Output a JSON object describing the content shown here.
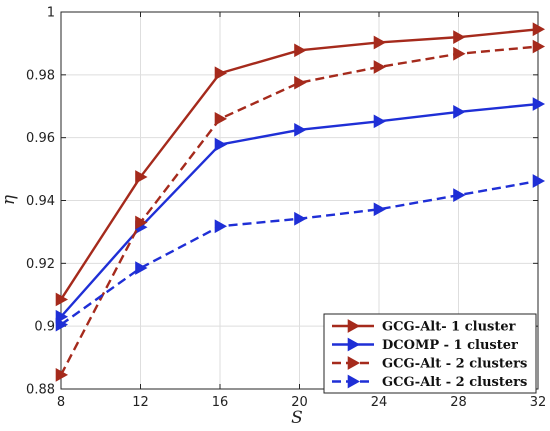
{
  "chart_data": {
    "type": "line",
    "title": "",
    "xlabel": "S",
    "ylabel": "η",
    "x": [
      8,
      12,
      16,
      20,
      24,
      28,
      32
    ],
    "xlim": [
      8,
      32
    ],
    "ylim": [
      0.88,
      1.0
    ],
    "xticks": [
      8,
      12,
      16,
      20,
      24,
      28,
      32
    ],
    "yticks": [
      0.88,
      0.9,
      0.92,
      0.94,
      0.96,
      0.98,
      1.0
    ],
    "xtick_labels": [
      "8",
      "12",
      "16",
      "20",
      "24",
      "28",
      "32"
    ],
    "ytick_labels": [
      "0.88",
      "0.9",
      "0.92",
      "0.94",
      "0.96",
      "0.98",
      "1"
    ],
    "grid": true,
    "legend_position": "bottom-right",
    "series": [
      {
        "name": "GCG-Alt- 1 cluster",
        "color": "#a52a1c",
        "dash": "solid",
        "values": [
          0.9085,
          0.9475,
          0.9805,
          0.9878,
          0.9903,
          0.992,
          0.9945
        ]
      },
      {
        "name": "DCOMP - 1 cluster",
        "color": "#1f2fd6",
        "dash": "solid",
        "values": [
          0.903,
          0.9315,
          0.9578,
          0.9625,
          0.9652,
          0.9682,
          0.9707
        ]
      },
      {
        "name": "GCG-Alt - 2 clusters",
        "color": "#a52a1c",
        "dash": "dashed",
        "values": [
          0.8845,
          0.933,
          0.966,
          0.9775,
          0.9825,
          0.9867,
          0.989
        ]
      },
      {
        "name": "GCG-Alt - 2 clusters",
        "color": "#1f2fd6",
        "dash": "dashed",
        "values": [
          0.9005,
          0.9185,
          0.9318,
          0.9342,
          0.9372,
          0.9417,
          0.9462
        ]
      }
    ]
  }
}
